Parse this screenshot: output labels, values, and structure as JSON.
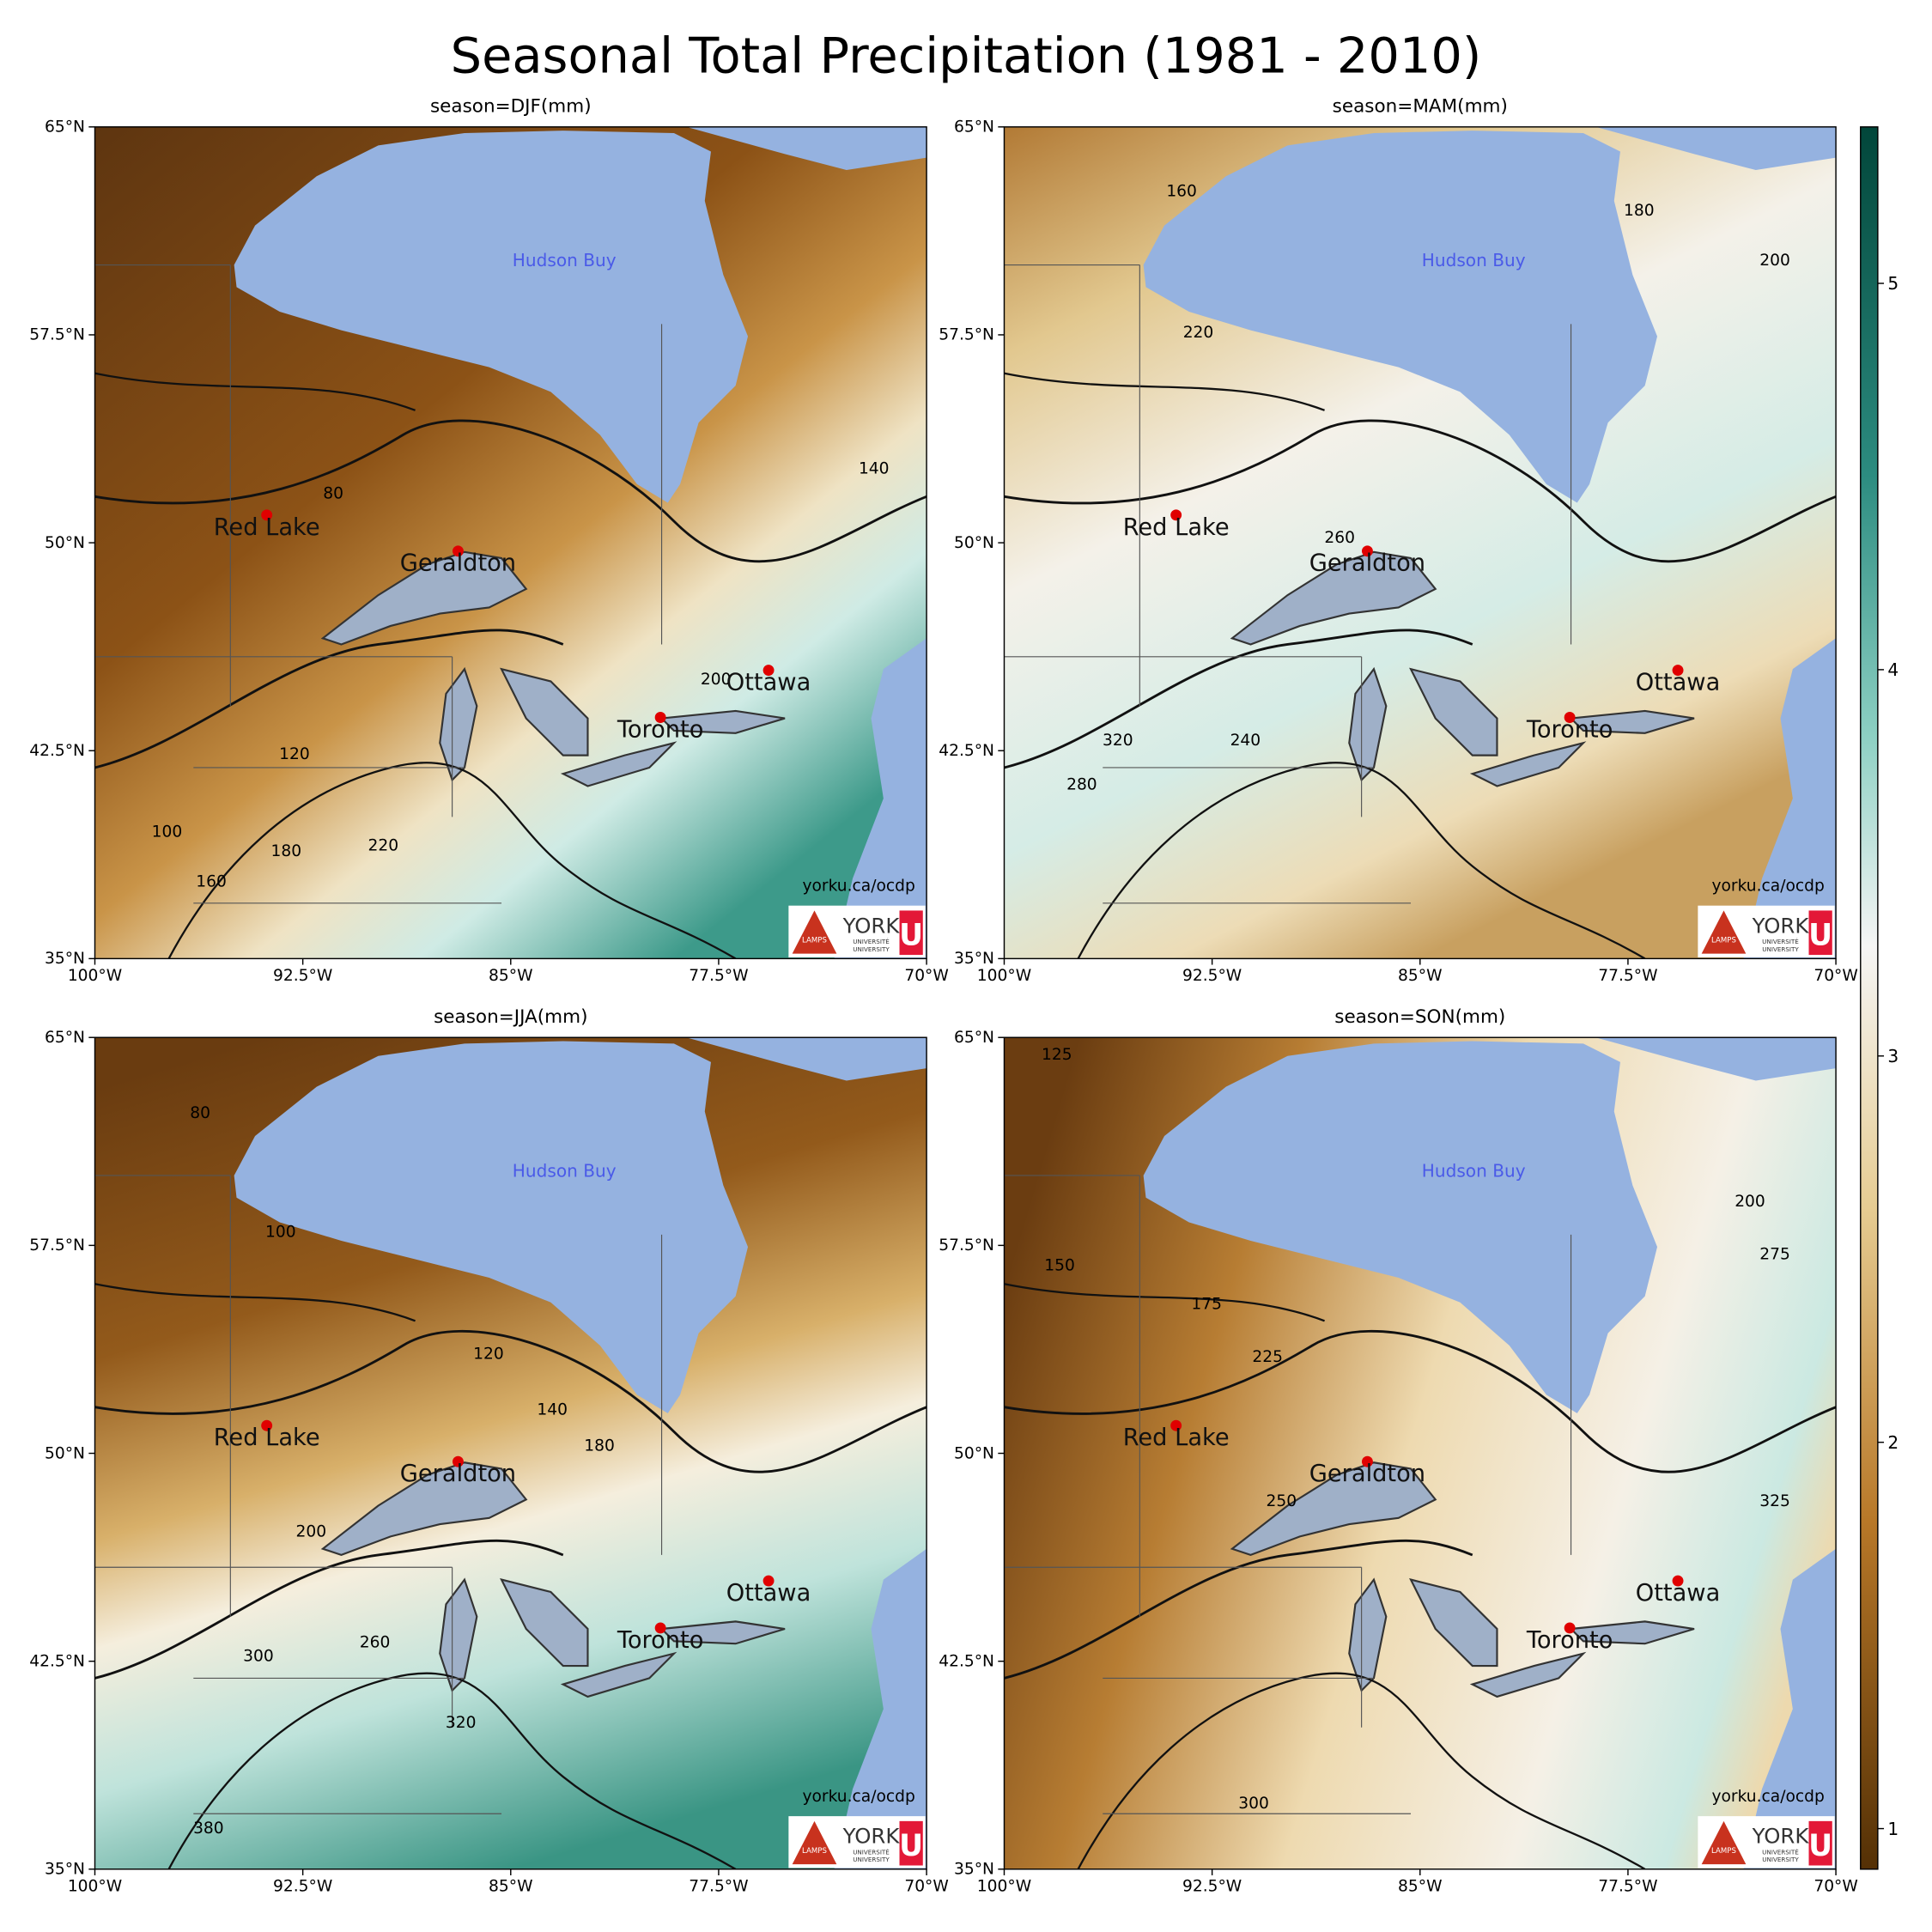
{
  "title": "Seasonal Total Precipitation (1981 - 2010)",
  "colorbar": {
    "lim": [
      0.895,
      5.405
    ],
    "ticks": [
      1,
      2,
      3,
      4,
      5
    ]
  },
  "logo": {
    "lamps": "LAMPS",
    "york": "YORK",
    "uni1": "UNIVERSITÉ",
    "uni2": "UNIVERSITY",
    "u": "U"
  },
  "chart_data": [
    {
      "type": "map",
      "title": "season=DJF(mm)",
      "xlim": [
        -100,
        -70
      ],
      "ylim": [
        35,
        65
      ],
      "xticks": [
        {
          "value": -100,
          "label": "100°W"
        },
        {
          "value": -92.5,
          "label": "92.5°W"
        },
        {
          "value": -85,
          "label": "85°W"
        },
        {
          "value": -77.5,
          "label": "77.5°W"
        },
        {
          "value": -70,
          "label": "70°W"
        }
      ],
      "yticks": [
        {
          "value": 35,
          "label": "35°N"
        },
        {
          "value": 42.5,
          "label": "42.5°N"
        },
        {
          "value": 50,
          "label": "50°N"
        },
        {
          "value": 57.5,
          "label": "57.5°N"
        },
        {
          "value": 65,
          "label": "65°N"
        }
      ],
      "annotation": "Hudson Buy",
      "credit": "yorku.ca/ocdp",
      "cities": [
        {
          "name": "Red Lake",
          "lon": -93.8,
          "lat": 51.0
        },
        {
          "name": "Geraldton",
          "lon": -86.9,
          "lat": 49.7
        },
        {
          "name": "Ottawa",
          "lon": -75.7,
          "lat": 45.4
        },
        {
          "name": "Toronto",
          "lon": -79.6,
          "lat": 43.7
        }
      ],
      "contour_labels": [
        80,
        140,
        120,
        100,
        160,
        180,
        220,
        200
      ]
    },
    {
      "type": "map",
      "title": "season=MAM(mm)",
      "xlim": [
        -100,
        -70
      ],
      "ylim": [
        35,
        65
      ],
      "xticks": [
        {
          "value": -100,
          "label": "100°W"
        },
        {
          "value": -92.5,
          "label": "92.5°W"
        },
        {
          "value": -85,
          "label": "85°W"
        },
        {
          "value": -77.5,
          "label": "77.5°W"
        },
        {
          "value": -70,
          "label": "70°W"
        }
      ],
      "yticks": [
        {
          "value": 35,
          "label": "35°N"
        },
        {
          "value": 42.5,
          "label": "42.5°N"
        },
        {
          "value": 50,
          "label": "50°N"
        },
        {
          "value": 57.5,
          "label": "57.5°N"
        },
        {
          "value": 65,
          "label": "65°N"
        }
      ],
      "annotation": "Hudson Buy",
      "credit": "yorku.ca/ocdp",
      "cities": [
        {
          "name": "Red Lake",
          "lon": -93.8,
          "lat": 51.0
        },
        {
          "name": "Geraldton",
          "lon": -86.9,
          "lat": 49.7
        },
        {
          "name": "Ottawa",
          "lon": -75.7,
          "lat": 45.4
        },
        {
          "name": "Toronto",
          "lon": -79.6,
          "lat": 43.7
        }
      ],
      "contour_labels": [
        160,
        180,
        220,
        260,
        320,
        280,
        240,
        200
      ]
    },
    {
      "type": "map",
      "title": "season=JJA(mm)",
      "xlim": [
        -100,
        -70
      ],
      "ylim": [
        35,
        65
      ],
      "xticks": [
        {
          "value": -100,
          "label": "100°W"
        },
        {
          "value": -92.5,
          "label": "92.5°W"
        },
        {
          "value": -85,
          "label": "85°W"
        },
        {
          "value": -77.5,
          "label": "77.5°W"
        },
        {
          "value": -70,
          "label": "70°W"
        }
      ],
      "yticks": [
        {
          "value": 35,
          "label": "35°N"
        },
        {
          "value": 42.5,
          "label": "42.5°N"
        },
        {
          "value": 50,
          "label": "50°N"
        },
        {
          "value": 57.5,
          "label": "57.5°N"
        },
        {
          "value": 65,
          "label": "65°N"
        }
      ],
      "annotation": "Hudson Buy",
      "credit": "yorku.ca/ocdp",
      "cities": [
        {
          "name": "Red Lake",
          "lon": -93.8,
          "lat": 51.0
        },
        {
          "name": "Geraldton",
          "lon": -86.9,
          "lat": 49.7
        },
        {
          "name": "Ottawa",
          "lon": -75.7,
          "lat": 45.4
        },
        {
          "name": "Toronto",
          "lon": -79.6,
          "lat": 43.7
        }
      ],
      "contour_labels": [
        80,
        100,
        120,
        140,
        180,
        200,
        260,
        300,
        320,
        380
      ]
    },
    {
      "type": "map",
      "title": "season=SON(mm)",
      "xlim": [
        -100,
        -70
      ],
      "ylim": [
        35,
        65
      ],
      "xticks": [
        {
          "value": -100,
          "label": "100°W"
        },
        {
          "value": -92.5,
          "label": "92.5°W"
        },
        {
          "value": -85,
          "label": "85°W"
        },
        {
          "value": -77.5,
          "label": "77.5°W"
        },
        {
          "value": -70,
          "label": "70°W"
        }
      ],
      "yticks": [
        {
          "value": 35,
          "label": "35°N"
        },
        {
          "value": 42.5,
          "label": "42.5°N"
        },
        {
          "value": 50,
          "label": "50°N"
        },
        {
          "value": 57.5,
          "label": "57.5°N"
        },
        {
          "value": 65,
          "label": "65°N"
        }
      ],
      "annotation": "Hudson Buy",
      "credit": "yorku.ca/ocdp",
      "cities": [
        {
          "name": "Red Lake",
          "lon": -93.8,
          "lat": 51.0
        },
        {
          "name": "Geraldton",
          "lon": -86.9,
          "lat": 49.7
        },
        {
          "name": "Ottawa",
          "lon": -75.7,
          "lat": 45.4
        },
        {
          "name": "Toronto",
          "lon": -79.6,
          "lat": 43.7
        }
      ],
      "contour_labels": [
        125,
        150,
        175,
        200,
        225,
        250,
        275,
        300,
        325
      ]
    }
  ]
}
